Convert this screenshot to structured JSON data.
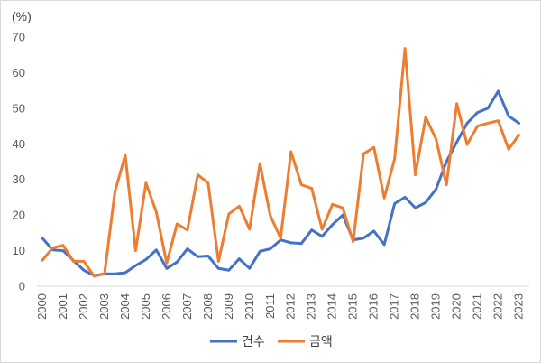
{
  "chart_data": {
    "type": "line",
    "unit_label": "(%)",
    "title": "",
    "xlabel": "",
    "ylabel": "",
    "ylim": [
      0,
      70
    ],
    "yticks": [
      0,
      10,
      20,
      30,
      40,
      50,
      60,
      70
    ],
    "year_labels": [
      "2000",
      "2001",
      "2002",
      "2003",
      "2004",
      "2005",
      "2006",
      "2007",
      "2008",
      "2009",
      "2010",
      "2011",
      "2012",
      "2013",
      "2014",
      "2015",
      "2016",
      "2017",
      "2018",
      "2019",
      "2020",
      "2021",
      "2022",
      "2023"
    ],
    "x_start": 2000,
    "x_end": 2023.5,
    "x": [
      2000,
      2000.5,
      2001,
      2001.5,
      2002,
      2002.5,
      2003,
      2003.5,
      2004,
      2004.5,
      2005,
      2005.5,
      2006,
      2006.5,
      2007,
      2007.5,
      2008,
      2008.5,
      2009,
      2009.5,
      2010,
      2010.5,
      2011,
      2011.5,
      2012,
      2012.5,
      2013,
      2013.5,
      2014,
      2014.5,
      2015,
      2015.5,
      2016,
      2016.5,
      2017,
      2017.5,
      2018,
      2018.5,
      2019,
      2019.5,
      2020,
      2020.5,
      2021,
      2021.5,
      2022,
      2022.5,
      2023,
      2023.5
    ],
    "series": [
      {
        "name": "건수",
        "color": "#4472c4",
        "values": [
          13.5,
          10.2,
          10.0,
          7.2,
          4.5,
          3.0,
          3.5,
          3.5,
          3.8,
          5.8,
          7.5,
          10.2,
          5.0,
          6.8,
          10.5,
          8.3,
          8.5,
          5.0,
          4.5,
          7.7,
          5.0,
          9.8,
          10.5,
          13.0,
          12.2,
          12.0,
          15.8,
          14.0,
          17.3,
          20.0,
          13.0,
          13.5,
          15.5,
          11.7,
          23.2,
          25.0,
          22.0,
          23.5,
          27.3,
          35.0,
          40.5,
          45.8,
          48.8,
          50.0,
          54.8,
          47.8,
          45.8,
          null
        ]
      },
      {
        "name": "금액",
        "color": "#ed7d31",
        "values": [
          7.3,
          10.8,
          11.5,
          7.0,
          7.0,
          2.8,
          3.5,
          26.5,
          36.8,
          10.0,
          29.0,
          20.8,
          6.5,
          17.5,
          15.8,
          31.3,
          29.0,
          7.0,
          20.3,
          22.5,
          16.0,
          34.5,
          19.8,
          13.5,
          37.8,
          28.5,
          27.5,
          16.0,
          23.0,
          22.0,
          12.5,
          37.2,
          39.0,
          24.8,
          35.8,
          66.8,
          31.3,
          47.5,
          41.3,
          28.5,
          51.3,
          39.8,
          45.0,
          45.8,
          46.5,
          38.5,
          42.5,
          null
        ]
      }
    ],
    "legend_position": "bottom",
    "grid": false
  }
}
